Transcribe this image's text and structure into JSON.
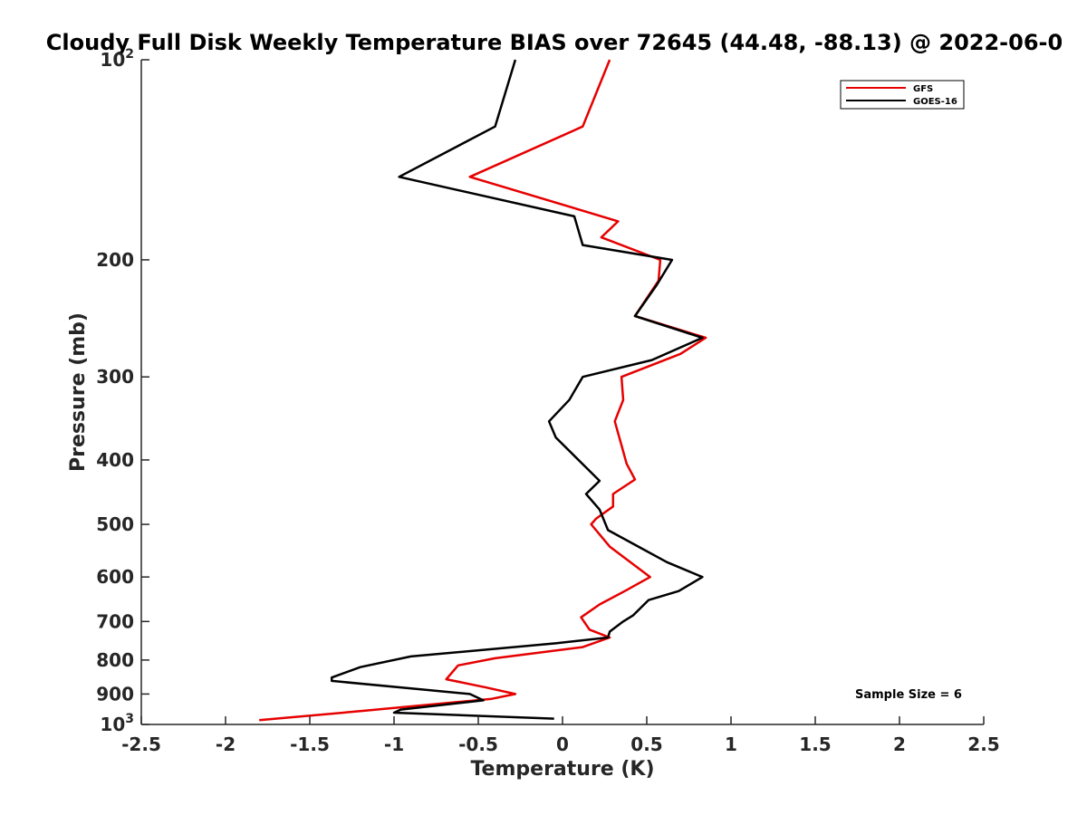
{
  "chart_data": {
    "type": "line",
    "title": "Cloudy Full Disk Weekly Temperature BIAS over 72645 (44.48, -88.13) @ 2022-06-0",
    "xlabel": "Temperature (K)",
    "ylabel": "Pressure (mb)",
    "xlim": [
      -2.5,
      2.5
    ],
    "ylim": [
      100,
      1000
    ],
    "y_scale": "log",
    "y_reversed": true,
    "grid": false,
    "legend_position": "top-right",
    "x_ticks": [
      -2.5,
      -2,
      -1.5,
      -1,
      -0.5,
      0,
      0.5,
      1,
      1.5,
      2,
      2.5
    ],
    "x_tick_labels": [
      "-2.5",
      "-2",
      "-1.5",
      "-1",
      "-0.5",
      "0",
      "0.5",
      "1",
      "1.5",
      "2",
      "2.5"
    ],
    "y_ticks": [
      100,
      200,
      300,
      400,
      500,
      600,
      700,
      800,
      900,
      1000
    ],
    "y_tick_labels": [
      {
        "base": "10",
        "exp": "2"
      },
      {
        "base": "200",
        "exp": ""
      },
      {
        "base": "300",
        "exp": ""
      },
      {
        "base": "400",
        "exp": ""
      },
      {
        "base": "500",
        "exp": ""
      },
      {
        "base": "600",
        "exp": ""
      },
      {
        "base": "700",
        "exp": ""
      },
      {
        "base": "800",
        "exp": ""
      },
      {
        "base": "900",
        "exp": ""
      },
      {
        "base": "10",
        "exp": "3"
      }
    ],
    "annotation": "Sample Size = 6",
    "series": [
      {
        "name": "GFS",
        "color": "#e60000",
        "points": [
          {
            "x": 0.28,
            "p": 100
          },
          {
            "x": 0.12,
            "p": 126
          },
          {
            "x": -0.55,
            "p": 150
          },
          {
            "x": 0.33,
            "p": 175
          },
          {
            "x": 0.23,
            "p": 185
          },
          {
            "x": 0.58,
            "p": 200
          },
          {
            "x": 0.57,
            "p": 215
          },
          {
            "x": 0.43,
            "p": 243
          },
          {
            "x": 0.85,
            "p": 262
          },
          {
            "x": 0.7,
            "p": 277
          },
          {
            "x": 0.35,
            "p": 300
          },
          {
            "x": 0.36,
            "p": 325
          },
          {
            "x": 0.31,
            "p": 350
          },
          {
            "x": 0.35,
            "p": 380
          },
          {
            "x": 0.38,
            "p": 405
          },
          {
            "x": 0.43,
            "p": 428
          },
          {
            "x": 0.3,
            "p": 450
          },
          {
            "x": 0.3,
            "p": 470
          },
          {
            "x": 0.2,
            "p": 490
          },
          {
            "x": 0.17,
            "p": 500
          },
          {
            "x": 0.28,
            "p": 540
          },
          {
            "x": 0.52,
            "p": 600
          },
          {
            "x": 0.37,
            "p": 630
          },
          {
            "x": 0.22,
            "p": 660
          },
          {
            "x": 0.11,
            "p": 690
          },
          {
            "x": 0.16,
            "p": 720
          },
          {
            "x": 0.28,
            "p": 740
          },
          {
            "x": 0.12,
            "p": 765
          },
          {
            "x": -0.4,
            "p": 795
          },
          {
            "x": -0.62,
            "p": 815
          },
          {
            "x": -0.69,
            "p": 855
          },
          {
            "x": -0.45,
            "p": 880
          },
          {
            "x": -0.28,
            "p": 900
          },
          {
            "x": -0.42,
            "p": 915
          },
          {
            "x": -1.2,
            "p": 955
          },
          {
            "x": -1.8,
            "p": 985
          }
        ]
      },
      {
        "name": "GOES-16",
        "color": "#000000",
        "points": [
          {
            "x": -0.28,
            "p": 100
          },
          {
            "x": -0.4,
            "p": 126
          },
          {
            "x": -0.97,
            "p": 150
          },
          {
            "x": 0.07,
            "p": 172
          },
          {
            "x": 0.12,
            "p": 190
          },
          {
            "x": 0.65,
            "p": 200
          },
          {
            "x": 0.56,
            "p": 218
          },
          {
            "x": 0.43,
            "p": 243
          },
          {
            "x": 0.83,
            "p": 262
          },
          {
            "x": 0.53,
            "p": 283
          },
          {
            "x": 0.12,
            "p": 300
          },
          {
            "x": 0.04,
            "p": 325
          },
          {
            "x": -0.08,
            "p": 350
          },
          {
            "x": -0.04,
            "p": 370
          },
          {
            "x": 0.22,
            "p": 430
          },
          {
            "x": 0.14,
            "p": 450
          },
          {
            "x": 0.22,
            "p": 475
          },
          {
            "x": 0.27,
            "p": 510
          },
          {
            "x": 0.45,
            "p": 540
          },
          {
            "x": 0.62,
            "p": 570
          },
          {
            "x": 0.83,
            "p": 600
          },
          {
            "x": 0.69,
            "p": 630
          },
          {
            "x": 0.51,
            "p": 650
          },
          {
            "x": 0.42,
            "p": 685
          },
          {
            "x": 0.36,
            "p": 700
          },
          {
            "x": 0.28,
            "p": 725
          },
          {
            "x": 0.27,
            "p": 740
          },
          {
            "x": -0.04,
            "p": 755
          },
          {
            "x": -0.9,
            "p": 790
          },
          {
            "x": -1.2,
            "p": 820
          },
          {
            "x": -1.37,
            "p": 850
          },
          {
            "x": -1.37,
            "p": 860
          },
          {
            "x": -0.55,
            "p": 900
          },
          {
            "x": -0.47,
            "p": 920
          },
          {
            "x": -0.96,
            "p": 950
          },
          {
            "x": -1.0,
            "p": 960
          },
          {
            "x": -0.05,
            "p": 980
          }
        ]
      }
    ]
  }
}
